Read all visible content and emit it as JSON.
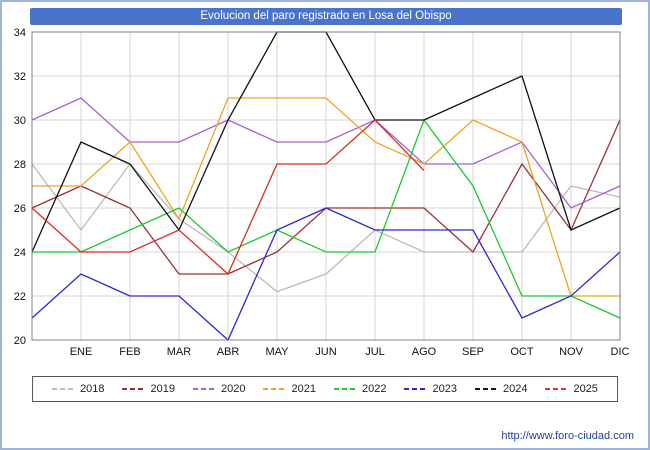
{
  "window": {
    "title": "Evolucion del paro registrado en Losa del Obispo"
  },
  "footer": {
    "url": "http://www.foro-ciudad.com"
  },
  "chart_data": {
    "type": "line",
    "title": "Evolucion del paro registrado en Losa del Obispo",
    "categories": [
      "ENE",
      "FEB",
      "MAR",
      "ABR",
      "MAY",
      "JUN",
      "JUL",
      "AGO",
      "SEP",
      "OCT",
      "NOV",
      "DIC"
    ],
    "x_note": "each series has up to 13 points: the value at the left axis edge followed by the 12 monthly values; shorter arrays end early in the year",
    "ylim": [
      20,
      34
    ],
    "yticks": [
      20,
      22,
      24,
      26,
      28,
      30,
      32,
      34
    ],
    "grid": true,
    "legend_position": "bottom",
    "series": [
      {
        "name": "2018",
        "color": "#bbbbbb",
        "values": [
          28,
          25,
          28,
          25.5,
          24,
          22.2,
          23,
          25,
          24,
          24,
          24,
          27,
          26.5
        ]
      },
      {
        "name": "2019",
        "color": "#993333",
        "values": [
          26,
          27,
          26,
          23,
          23,
          24,
          26,
          26,
          26,
          24,
          28,
          25,
          30
        ]
      },
      {
        "name": "2020",
        "color": "#a65fd5",
        "values": [
          30,
          31,
          29,
          29,
          30,
          29,
          29,
          30,
          28,
          28,
          29,
          26,
          27
        ]
      },
      {
        "name": "2021",
        "color": "#efa420",
        "values": [
          27,
          27,
          29,
          25.5,
          31,
          31,
          31,
          29,
          28,
          30,
          29,
          22,
          22
        ]
      },
      {
        "name": "2022",
        "color": "#1ec832",
        "values": [
          24,
          24,
          25,
          26,
          24,
          25,
          24,
          24,
          30,
          27,
          22,
          22,
          21
        ]
      },
      {
        "name": "2023",
        "color": "#2a2ad2",
        "values": [
          21,
          23,
          22,
          22,
          20,
          25,
          26,
          25,
          25,
          25,
          21,
          22,
          24
        ]
      },
      {
        "name": "2024",
        "color": "#111111",
        "values": [
          24,
          29,
          28,
          25,
          30,
          34,
          34,
          30,
          30,
          31,
          32,
          25,
          26
        ]
      },
      {
        "name": "2025",
        "color": "#dd2c20",
        "values": [
          26,
          24,
          24,
          25,
          23,
          28,
          28,
          30,
          27.7
        ]
      }
    ]
  }
}
